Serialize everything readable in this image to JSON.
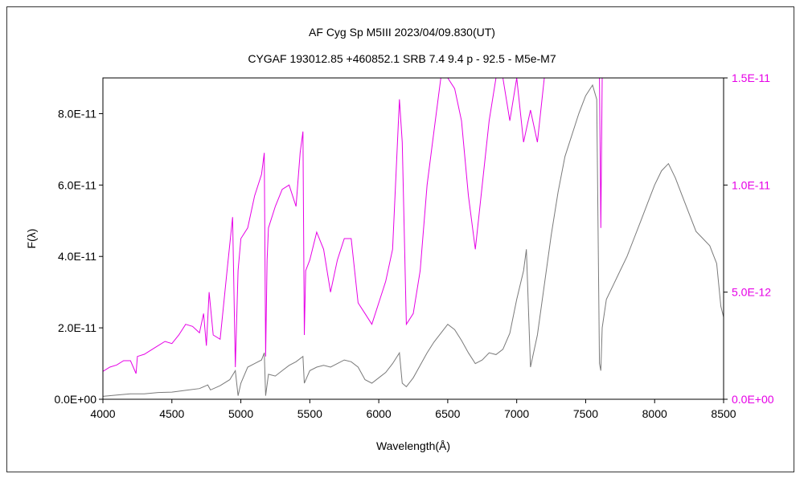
{
  "colors": {
    "gray_series": "#7a7a7a",
    "magenta_series": "#e600e6",
    "axis": "#000000",
    "right_axis_text": "#e600e6"
  },
  "chart_data": {
    "type": "line",
    "title": "AF Cyg     Sp M5III    2023/04/09.830(UT)",
    "subtitle": "CYGAF 193012.85 +460852.1 SRB 7.4 9.4 p - 92.5 - M5e-M7",
    "xlabel": "Wavelength(Å)",
    "ylabel": "F(λ)",
    "xlim": [
      4000,
      8500
    ],
    "ylim_left": [
      0,
      9e-11
    ],
    "ylim_right": [
      0,
      1.5e-11
    ],
    "x_ticks": [
      "4000",
      "4500",
      "5000",
      "5500",
      "6000",
      "6500",
      "7000",
      "7500",
      "8000",
      "8500"
    ],
    "y_left_ticks": [
      "0.0E+00",
      "2.0E-11",
      "4.0E-11",
      "6.0E-11",
      "8.0E-11"
    ],
    "y_right_ticks": [
      "0.0E+00",
      "5.0E-12",
      "1.0E-11",
      "1.5E-11"
    ],
    "grid": false,
    "legend": "none",
    "series": [
      {
        "axis": "left",
        "color": "#7a7a7a",
        "x": [
          4000,
          4100,
          4200,
          4300,
          4400,
          4500,
          4600,
          4700,
          4760,
          4780,
          4850,
          4920,
          4960,
          4980,
          5000,
          5050,
          5100,
          5150,
          5170,
          5180,
          5200,
          5250,
          5300,
          5350,
          5400,
          5450,
          5460,
          5500,
          5550,
          5600,
          5650,
          5700,
          5750,
          5800,
          5850,
          5900,
          5950,
          6000,
          6050,
          6100,
          6150,
          6170,
          6200,
          6250,
          6300,
          6350,
          6400,
          6450,
          6500,
          6550,
          6600,
          6650,
          6700,
          6750,
          6800,
          6850,
          6900,
          6950,
          7000,
          7050,
          7070,
          7100,
          7150,
          7200,
          7250,
          7300,
          7350,
          7400,
          7450,
          7500,
          7550,
          7580,
          7600,
          7610,
          7620,
          7650,
          7700,
          7750,
          7800,
          7850,
          7900,
          7950,
          8000,
          8050,
          8100,
          8150,
          8200,
          8250,
          8300,
          8350,
          8400,
          8450,
          8480,
          8500
        ],
        "y": [
          8e-13,
          1.2e-12,
          1.5e-12,
          1.5e-12,
          1.9e-12,
          2e-12,
          2.5e-12,
          3e-12,
          4e-12,
          2.6e-12,
          3.8e-12,
          5.5e-12,
          8e-12,
          1e-12,
          4.5e-12,
          9e-12,
          1e-11,
          1.1e-11,
          1.3e-11,
          1e-12,
          7e-12,
          6.5e-12,
          8e-12,
          9.5e-12,
          1.05e-11,
          1.2e-11,
          4.5e-12,
          8e-12,
          9e-12,
          9.5e-12,
          9e-12,
          1e-11,
          1.1e-11,
          1.05e-11,
          9e-12,
          5.5e-12,
          4.5e-12,
          6e-12,
          7.5e-12,
          1e-11,
          1.3e-11,
          4.5e-12,
          3.5e-12,
          6e-12,
          9.5e-12,
          1.3e-11,
          1.6e-11,
          1.85e-11,
          2.1e-11,
          1.95e-11,
          1.65e-11,
          1.3e-11,
          1e-11,
          1.1e-11,
          1.3e-11,
          1.25e-11,
          1.4e-11,
          1.85e-11,
          2.8e-11,
          3.6e-11,
          4.2e-11,
          9e-12,
          1.8e-11,
          3.2e-11,
          4.6e-11,
          5.8e-11,
          6.8e-11,
          7.4e-11,
          8e-11,
          8.5e-11,
          8.8e-11,
          8.4e-11,
          1e-11,
          8e-12,
          2e-11,
          2.8e-11,
          3.2e-11,
          3.6e-11,
          4e-11,
          4.5e-11,
          5e-11,
          5.5e-11,
          6e-11,
          6.4e-11,
          6.6e-11,
          6.2e-11,
          5.7e-11,
          5.2e-11,
          4.7e-11,
          4.5e-11,
          4.3e-11,
          3.8e-11,
          2.6e-11,
          2.3e-11
        ]
      },
      {
        "axis": "right",
        "color": "#e600e6",
        "x": [
          4000,
          4050,
          4100,
          4150,
          4200,
          4240,
          4250,
          4300,
          4350,
          4400,
          4450,
          4500,
          4550,
          4600,
          4650,
          4700,
          4730,
          4750,
          4770,
          4800,
          4850,
          4900,
          4940,
          4960,
          4980,
          5000,
          5050,
          5100,
          5150,
          5170,
          5180,
          5190,
          5200,
          5250,
          5300,
          5350,
          5400,
          5430,
          5450,
          5460,
          5470,
          5500,
          5550,
          5600,
          5650,
          5700,
          5750,
          5800,
          5850,
          5900,
          5950,
          6000,
          6050,
          6100,
          6150,
          6170,
          6200,
          6250,
          6300,
          6350,
          6400,
          6450,
          6500,
          6550,
          6600,
          6650,
          6700,
          6750,
          6800,
          6850,
          6900,
          6950,
          7000,
          7050,
          7100,
          7150,
          7200,
          7250,
          7300,
          7350,
          7400,
          7450,
          7500,
          7550,
          7600,
          7610,
          7620,
          7630,
          7650
        ],
        "y": [
          1.3e-12,
          1.5e-12,
          1.6e-12,
          1.8e-12,
          1.8e-12,
          1.2e-12,
          2e-12,
          2.1e-12,
          2.3e-12,
          2.5e-12,
          2.7e-12,
          2.6e-12,
          3e-12,
          3.5e-12,
          3.4e-12,
          3.1e-12,
          4e-12,
          2.5e-12,
          5e-12,
          3e-12,
          2.8e-12,
          6e-12,
          8.5e-12,
          1.5e-12,
          6e-12,
          7.5e-12,
          8e-12,
          9.5e-12,
          1.05e-11,
          1.15e-11,
          2e-12,
          6.5e-12,
          8e-12,
          9e-12,
          9.8e-12,
          1e-11,
          9e-12,
          1.15e-11,
          1.25e-11,
          3e-12,
          6e-12,
          6.5e-12,
          7.8e-12,
          7e-12,
          5e-12,
          6.5e-12,
          7.5e-12,
          7.5e-12,
          4.5e-12,
          4e-12,
          3.5e-12,
          4.5e-12,
          5.5e-12,
          7e-12,
          1.4e-11,
          1.2e-11,
          3.5e-12,
          4e-12,
          6e-12,
          1e-11,
          1.25e-11,
          1.5e-11,
          1.5e-11,
          1.45e-11,
          1.3e-11,
          9.5e-12,
          7e-12,
          1e-11,
          1.3e-11,
          1.5e-11,
          1.5e-11,
          1.3e-11,
          1.5e-11,
          1.2e-11,
          1.35e-11,
          1.2e-11,
          1.5e-11,
          1.5e-11,
          1.5e-11,
          1.5e-11,
          1.5e-11,
          1.5e-11,
          1.5e-11,
          1.5e-11,
          1.5e-11,
          8e-12,
          1.5e-11,
          1.5e-11,
          1.5e-11
        ]
      }
    ]
  }
}
